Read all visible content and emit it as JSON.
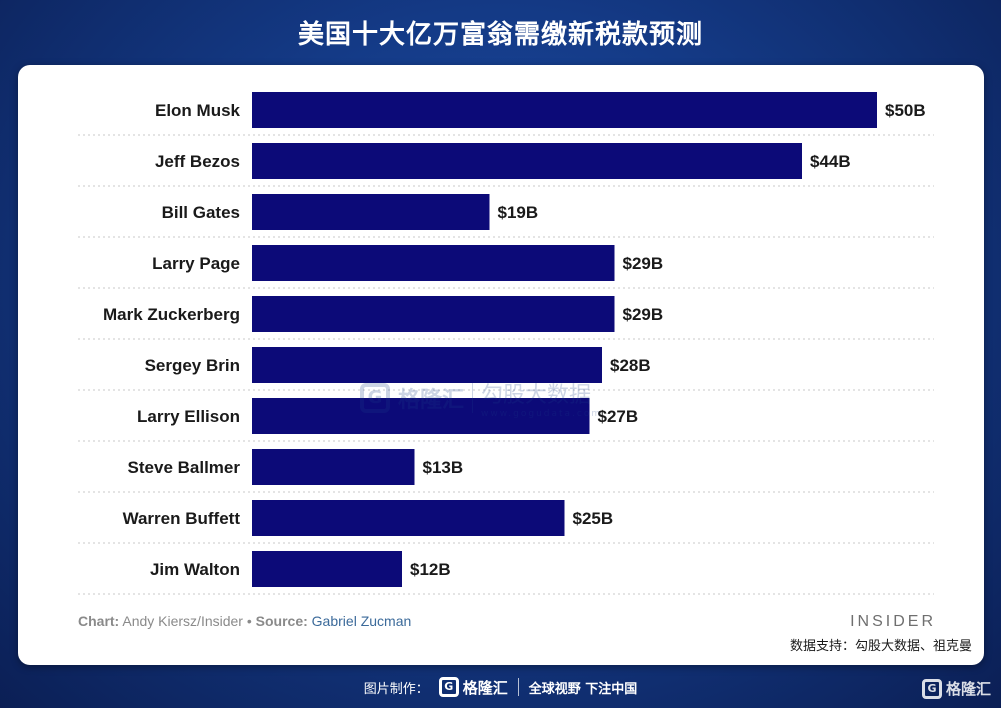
{
  "header": {
    "title": "美国十大亿万富翁需缴新税款预测"
  },
  "chart_data": {
    "type": "bar",
    "orientation": "horizontal",
    "categories": [
      "Elon Musk",
      "Jeff Bezos",
      "Bill Gates",
      "Larry Page",
      "Mark Zuckerberg",
      "Sergey Brin",
      "Larry Ellison",
      "Steve Ballmer",
      "Warren Buffett",
      "Jim Walton"
    ],
    "values": [
      50,
      44,
      19,
      29,
      29,
      28,
      27,
      13,
      25,
      12
    ],
    "value_labels": [
      "$50B",
      "$44B",
      "$19B",
      "$29B",
      "$29B",
      "$28B",
      "$27B",
      "$13B",
      "$25B",
      "$12B"
    ],
    "title": "",
    "xlabel": "",
    "ylabel": "",
    "xlim": [
      0,
      50
    ],
    "grid": "dotted separators between rows",
    "bar_color": "#0c0a78"
  },
  "credit": {
    "chart_label": "Chart:",
    "chart_author": "Andy Kiersz/Insider",
    "bullet": "•",
    "source_label": "Source:",
    "source_name": "Gabriel Zucman"
  },
  "brand": {
    "insider": "INSIDER",
    "data_support": "数据支持：勾股大数据、祖克曼"
  },
  "watermark": {
    "mark": "G",
    "name": "格隆汇",
    "tagline": "勾股大数据",
    "url": "www.gogudata.com"
  },
  "footer": {
    "made_by": "图片制作：",
    "logo_mark": "G",
    "logo_name": "格隆汇",
    "slogan": "全球视野 下注中国"
  },
  "corner": {
    "mark": "G",
    "name": "格隆汇"
  },
  "colors": {
    "background": "#143a86",
    "card": "#ffffff",
    "bar": "#0c0a78"
  }
}
